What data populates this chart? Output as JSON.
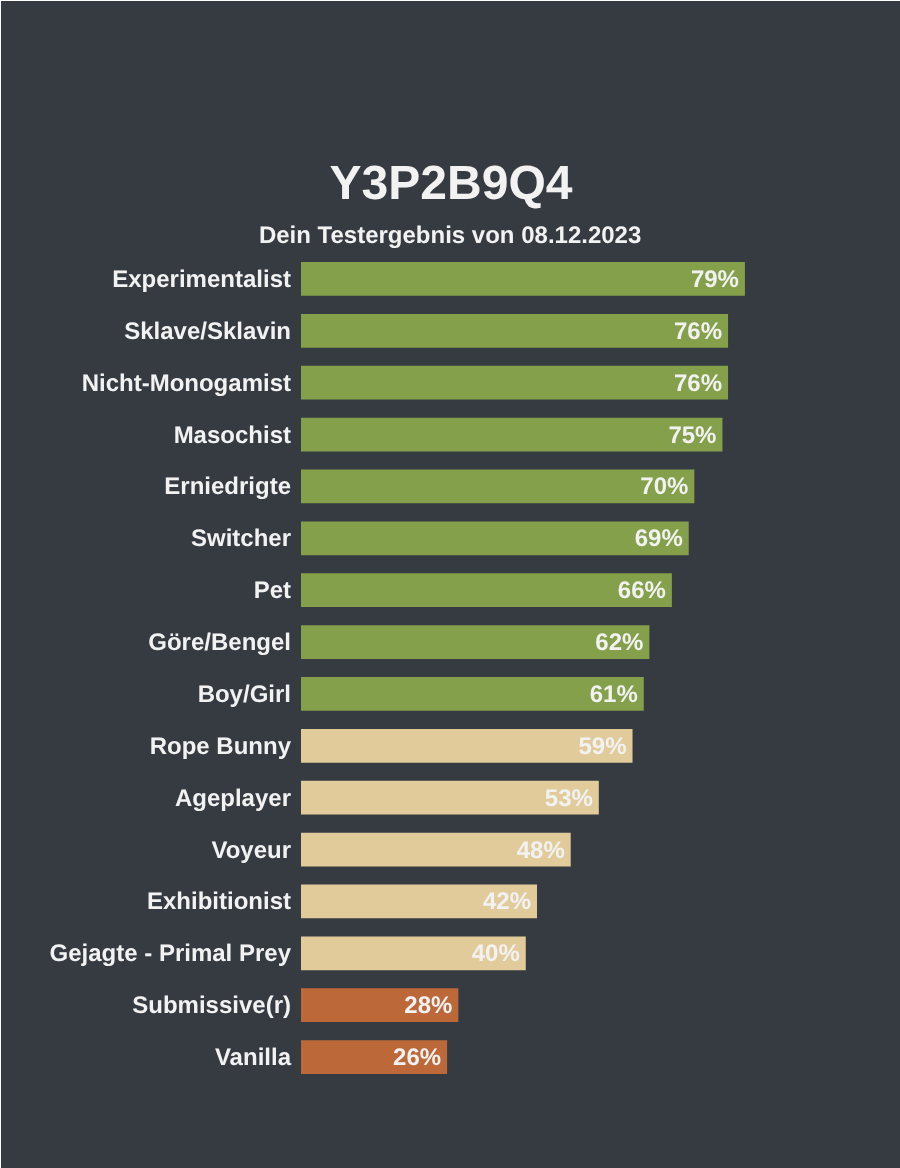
{
  "chart_data": {
    "type": "bar",
    "orientation": "horizontal",
    "title": "Y3P2B9Q4",
    "subtitle": "Dein Testergebnis von 08.12.2023",
    "categories": [
      "Experimentalist",
      "Sklave/Sklavin",
      "Nicht-Monogamist",
      "Masochist",
      "Erniedrigte",
      "Switcher",
      "Pet",
      "Göre/Bengel",
      "Boy/Girl",
      "Rope Bunny",
      "Ageplayer",
      "Voyeur",
      "Exhibitionist",
      "Gejagte - Primal Prey",
      "Submissive(r)",
      "Vanilla"
    ],
    "values": [
      79,
      76,
      76,
      75,
      70,
      69,
      66,
      62,
      61,
      59,
      53,
      48,
      42,
      40,
      28,
      26
    ],
    "value_labels": [
      "79%",
      "76%",
      "76%",
      "75%",
      "70%",
      "69%",
      "66%",
      "62%",
      "61%",
      "59%",
      "53%",
      "48%",
      "42%",
      "40%",
      "28%",
      "26%"
    ],
    "colors": [
      "#84a04a",
      "#84a04a",
      "#84a04a",
      "#84a04a",
      "#84a04a",
      "#84a04a",
      "#84a04a",
      "#84a04a",
      "#84a04a",
      "#e1cb9b",
      "#e1cb9b",
      "#e1cb9b",
      "#e1cb9b",
      "#e1cb9b",
      "#bd6838",
      "#bd6838"
    ],
    "tick_labels": "y",
    "grid": false
  }
}
